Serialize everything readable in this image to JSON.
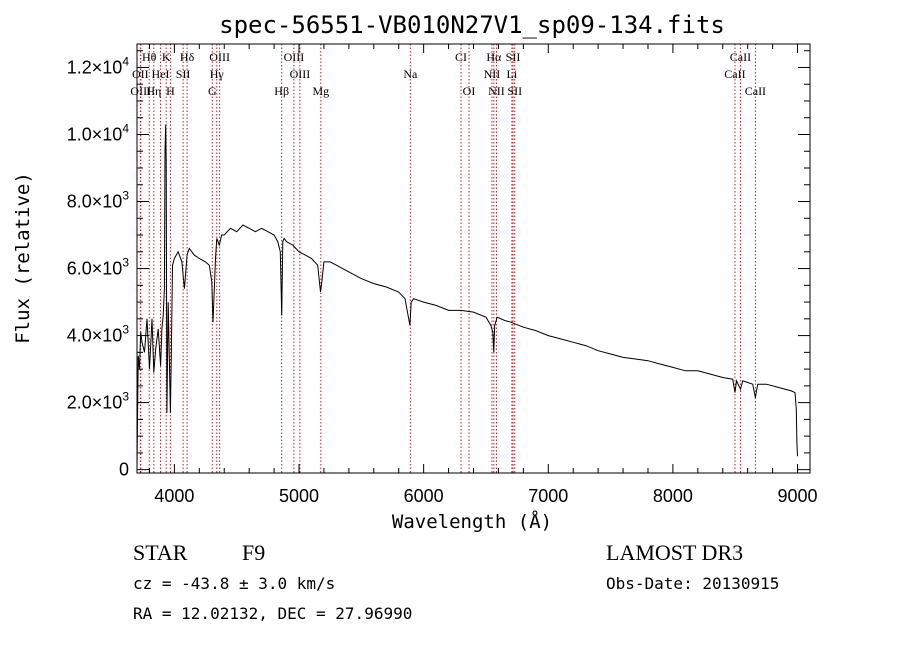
{
  "chart_data": {
    "type": "line",
    "title": "spec-56551-VB010N27V1_sp09-134.fits",
    "xlabel": "Wavelength (Å)",
    "ylabel": "Flux (relative)",
    "xlim": [
      3700,
      9100
    ],
    "ylim": [
      -100,
      12700
    ],
    "x_ticks": [
      {
        "value": 4000,
        "label": "4000"
      },
      {
        "value": 5000,
        "label": "5000"
      },
      {
        "value": 6000,
        "label": "6000"
      },
      {
        "value": 7000,
        "label": "7000"
      },
      {
        "value": 8000,
        "label": "8000"
      },
      {
        "value": 9000,
        "label": "9000"
      }
    ],
    "y_ticks": [
      {
        "value": 0,
        "mant": "0",
        "exp": ""
      },
      {
        "value": 2000,
        "mant": "2.0×10",
        "exp": "3"
      },
      {
        "value": 4000,
        "mant": "4.0×10",
        "exp": "3"
      },
      {
        "value": 6000,
        "mant": "6.0×10",
        "exp": "3"
      },
      {
        "value": 8000,
        "mant": "8.0×10",
        "exp": "3"
      },
      {
        "value": 10000,
        "mant": "1.0×10",
        "exp": "4"
      },
      {
        "value": 12000,
        "mant": "1.2×10",
        "exp": "4"
      }
    ],
    "spectrum": {
      "name": "flux",
      "x": [
        3700,
        3710,
        3720,
        3730,
        3740,
        3760,
        3780,
        3800,
        3820,
        3835,
        3850,
        3870,
        3889,
        3900,
        3910,
        3920,
        3925,
        3930,
        3934,
        3940,
        3950,
        3960,
        3968,
        3975,
        3985,
        4000,
        4030,
        4060,
        4080,
        4102,
        4120,
        4160,
        4200,
        4250,
        4280,
        4300,
        4310,
        4330,
        4340,
        4360,
        4380,
        4400,
        4450,
        4500,
        4550,
        4600,
        4650,
        4700,
        4750,
        4800,
        4830,
        4850,
        4861,
        4870,
        4880,
        4900,
        4950,
        5000,
        5050,
        5100,
        5150,
        5172,
        5183,
        5200,
        5250,
        5300,
        5350,
        5400,
        5500,
        5600,
        5700,
        5800,
        5850,
        5880,
        5890,
        5900,
        5920,
        6000,
        6100,
        6200,
        6300,
        6400,
        6500,
        6540,
        6555,
        6563,
        6570,
        6590,
        6650,
        6700,
        6800,
        6900,
        7000,
        7100,
        7200,
        7300,
        7400,
        7500,
        7600,
        7700,
        7800,
        7900,
        8000,
        8100,
        8200,
        8300,
        8400,
        8480,
        8498,
        8510,
        8542,
        8560,
        8600,
        8640,
        8662,
        8680,
        8750,
        8850,
        8950,
        8980,
        8990,
        8995,
        9000
      ],
      "y": [
        0,
        3400,
        3000,
        4100,
        3800,
        3500,
        4500,
        3000,
        4500,
        2900,
        3600,
        4200,
        3100,
        4200,
        4600,
        5400,
        9500,
        10300,
        9200,
        1700,
        5000,
        3200,
        1700,
        3400,
        6100,
        6300,
        6500,
        6200,
        5400,
        6400,
        6600,
        6400,
        6300,
        6200,
        6100,
        5600,
        4400,
        6300,
        6900,
        6700,
        7000,
        7000,
        7200,
        7100,
        7300,
        7200,
        7100,
        7200,
        7100,
        7000,
        6800,
        6500,
        4600,
        6800,
        6900,
        6800,
        6700,
        6500,
        6400,
        6300,
        6100,
        5300,
        5600,
        6200,
        6200,
        6100,
        6000,
        5900,
        5700,
        5550,
        5450,
        5300,
        5100,
        4500,
        4300,
        5000,
        5100,
        5000,
        4900,
        4750,
        4750,
        4700,
        4550,
        4300,
        4100,
        3500,
        4300,
        4550,
        4450,
        4400,
        4250,
        4150,
        4000,
        3900,
        3800,
        3700,
        3550,
        3450,
        3350,
        3300,
        3250,
        3150,
        3050,
        2950,
        2950,
        2850,
        2750,
        2700,
        2300,
        2650,
        2400,
        2650,
        2600,
        2550,
        2150,
        2550,
        2550,
        2450,
        2350,
        2300,
        1800,
        800,
        400
      ]
    },
    "lines": [
      {
        "label": "Hθ",
        "x": 3798,
        "row": 1
      },
      {
        "label": "K",
        "x": 3934,
        "row": 1
      },
      {
        "label": "Hδ",
        "x": 4102,
        "row": 1
      },
      {
        "label": "OIII",
        "x": 4363,
        "row": 1
      },
      {
        "label": "OIII",
        "x": 4959,
        "row": 1
      },
      {
        "label": "CI",
        "x": 6300,
        "row": 1
      },
      {
        "label": "Hα",
        "x": 6563,
        "row": 1
      },
      {
        "label": "SII",
        "x": 6717,
        "row": 1
      },
      {
        "label": "CaII",
        "x": 8542,
        "row": 1
      },
      {
        "label": "OII",
        "x": 3727,
        "row": 2
      },
      {
        "label": "HeI",
        "x": 3889,
        "row": 2
      },
      {
        "label": "SII",
        "x": 4070,
        "row": 2
      },
      {
        "label": "Hγ",
        "x": 4340,
        "row": 2
      },
      {
        "label": "OIII",
        "x": 5007,
        "row": 2
      },
      {
        "label": "Na",
        "x": 5893,
        "row": 2
      },
      {
        "label": "NII",
        "x": 6548,
        "row": 2
      },
      {
        "label": "Li",
        "x": 6708,
        "row": 2
      },
      {
        "label": "CaII",
        "x": 8498,
        "row": 2
      },
      {
        "label": "OIII",
        "x": 3730,
        "row": 3
      },
      {
        "label": "Hη",
        "x": 3835,
        "row": 3
      },
      {
        "label": "H",
        "x": 3968,
        "row": 3
      },
      {
        "label": "G",
        "x": 4304,
        "row": 3
      },
      {
        "label": "Hβ",
        "x": 4861,
        "row": 3
      },
      {
        "label": "Mg",
        "x": 5175,
        "row": 3
      },
      {
        "label": "OI",
        "x": 6364,
        "row": 3
      },
      {
        "label": "NII",
        "x": 6584,
        "row": 3
      },
      {
        "label": "SII",
        "x": 6731,
        "row": 3
      },
      {
        "label": "CaII",
        "x": 8662,
        "row": 3
      }
    ],
    "line_color": "#c02020"
  },
  "info": {
    "object_type": "STAR",
    "subclass": "F9",
    "survey": "LAMOST DR3",
    "redshift": "cz = -43.8 ± 3.0 km/s",
    "obs_date": "Obs-Date: 20130915",
    "coords": "RA =  12.02132, DEC =  27.96990"
  }
}
